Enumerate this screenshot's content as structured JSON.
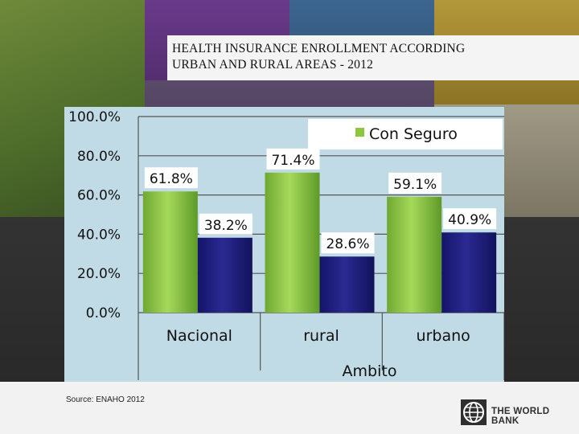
{
  "title_lines": [
    "HEALTH INSURANCE ENROLLMENT ACCORDING",
    "URBAN AND RURAL AREAS - 2012"
  ],
  "source": "Source: ENAHO 2012",
  "logo_text": "THE WORLD BANK",
  "chart_data": {
    "type": "bar",
    "categories": [
      "Nacional",
      "rural",
      "urbano"
    ],
    "series": [
      {
        "name": "Con Seguro",
        "values": [
          61.8,
          71.4,
          59.1
        ],
        "color": "#8dc63f"
      },
      {
        "name": "",
        "values": [
          38.2,
          28.6,
          40.9
        ],
        "color": "#1e1e78"
      }
    ],
    "data_labels": [
      [
        "61.8%",
        "71.4%",
        "59.1%"
      ],
      [
        "38.2%",
        "28.6%",
        "40.9%"
      ]
    ],
    "xlabel": "Ambito",
    "ylabel": "",
    "ylim": [
      0,
      100
    ],
    "yticks": [
      "0.0%",
      "20.0%",
      "40.0%",
      "60.0%",
      "80.0%",
      "100.0%"
    ],
    "grid": true,
    "legend": "top-right"
  }
}
